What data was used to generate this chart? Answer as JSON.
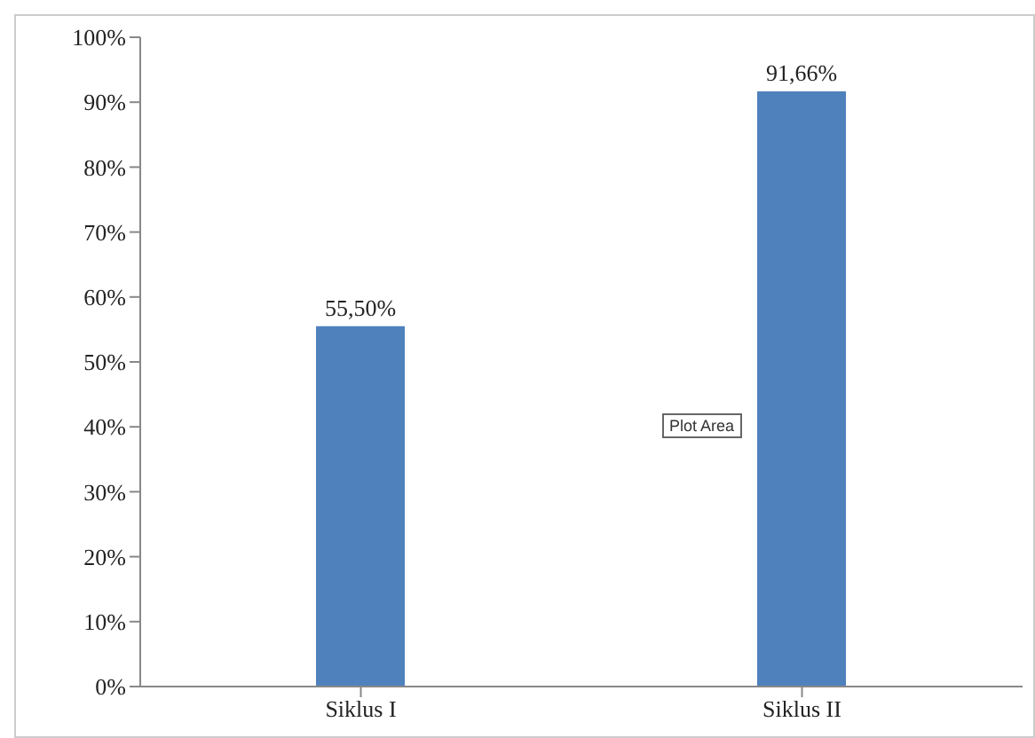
{
  "chart_data": {
    "type": "bar",
    "categories": [
      "Siklus I",
      "Siklus II"
    ],
    "values": [
      55.5,
      91.66
    ],
    "color": "#4f81bd",
    "value_labels": [
      "55,50%",
      "91,66%"
    ],
    "ylim": [
      0,
      100
    ],
    "yticks": [
      {
        "value": 0,
        "label": "0%"
      },
      {
        "value": 10,
        "label": "10%"
      },
      {
        "value": 20,
        "label": "20%"
      },
      {
        "value": 30,
        "label": "30%"
      },
      {
        "value": 40,
        "label": "40%"
      },
      {
        "value": 50,
        "label": "50%"
      },
      {
        "value": 60,
        "label": "60%"
      },
      {
        "value": 70,
        "label": "70%"
      },
      {
        "value": 80,
        "label": "80%"
      },
      {
        "value": 90,
        "label": "90%"
      },
      {
        "value": 100,
        "label": "100%"
      }
    ],
    "grid": false,
    "legend": false,
    "annotations": [
      "Plot Area"
    ]
  }
}
